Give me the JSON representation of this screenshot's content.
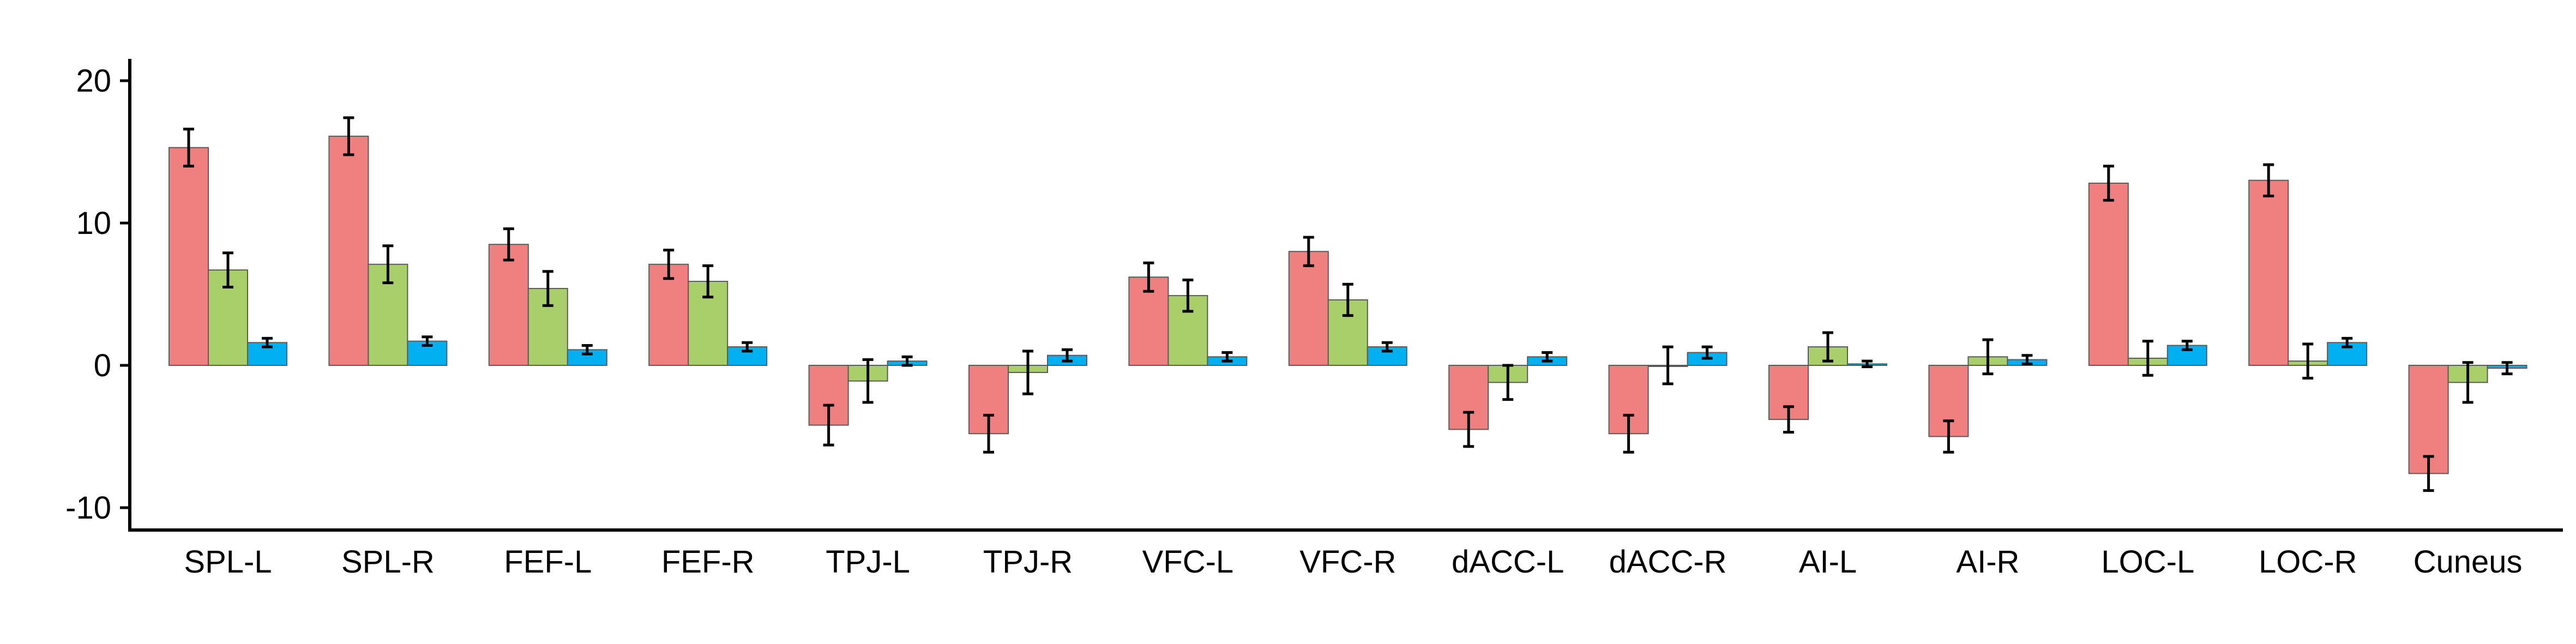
{
  "chart_data": {
    "type": "bar",
    "categories": [
      "SPL-L",
      "SPL-R",
      "FEF-L",
      "FEF-R",
      "TPJ-L",
      "TPJ-R",
      "VFC-L",
      "VFC-R",
      "dACC-L",
      "dACC-R",
      "AI-L",
      "AI-R",
      "LOC-L",
      "LOC-R",
      "Cuneus"
    ],
    "series": [
      {
        "color": "#f08080",
        "values": [
          15.3,
          16.1,
          8.5,
          7.1,
          -4.2,
          -4.8,
          6.2,
          8.0,
          -4.5,
          -4.8,
          -3.8,
          -5.0,
          12.8,
          13.0,
          -7.6
        ],
        "errors": [
          1.3,
          1.3,
          1.1,
          1.0,
          1.4,
          1.3,
          1.0,
          1.0,
          1.2,
          1.3,
          0.9,
          1.1,
          1.2,
          1.1,
          1.2
        ]
      },
      {
        "color": "#a8cf6a",
        "values": [
          6.7,
          7.1,
          5.4,
          5.9,
          -1.1,
          -0.5,
          4.9,
          4.6,
          -1.2,
          0.0,
          1.3,
          0.6,
          0.5,
          0.3,
          -1.2
        ],
        "errors": [
          1.2,
          1.3,
          1.2,
          1.1,
          1.5,
          1.5,
          1.1,
          1.1,
          1.2,
          1.3,
          1.0,
          1.2,
          1.2,
          1.2,
          1.4
        ]
      },
      {
        "color": "#00b0f0",
        "values": [
          1.6,
          1.7,
          1.1,
          1.3,
          0.3,
          0.7,
          0.6,
          1.3,
          0.6,
          0.9,
          0.1,
          0.4,
          1.4,
          1.6,
          -0.2
        ],
        "errors": [
          0.3,
          0.3,
          0.3,
          0.3,
          0.3,
          0.4,
          0.3,
          0.3,
          0.3,
          0.4,
          0.2,
          0.3,
          0.3,
          0.3,
          0.4
        ]
      }
    ],
    "yticks": [
      20,
      10,
      0,
      -10
    ],
    "ylim": [
      -11.5,
      21.5
    ],
    "xlabel": "",
    "ylabel": "",
    "title": "",
    "grid": false
  }
}
